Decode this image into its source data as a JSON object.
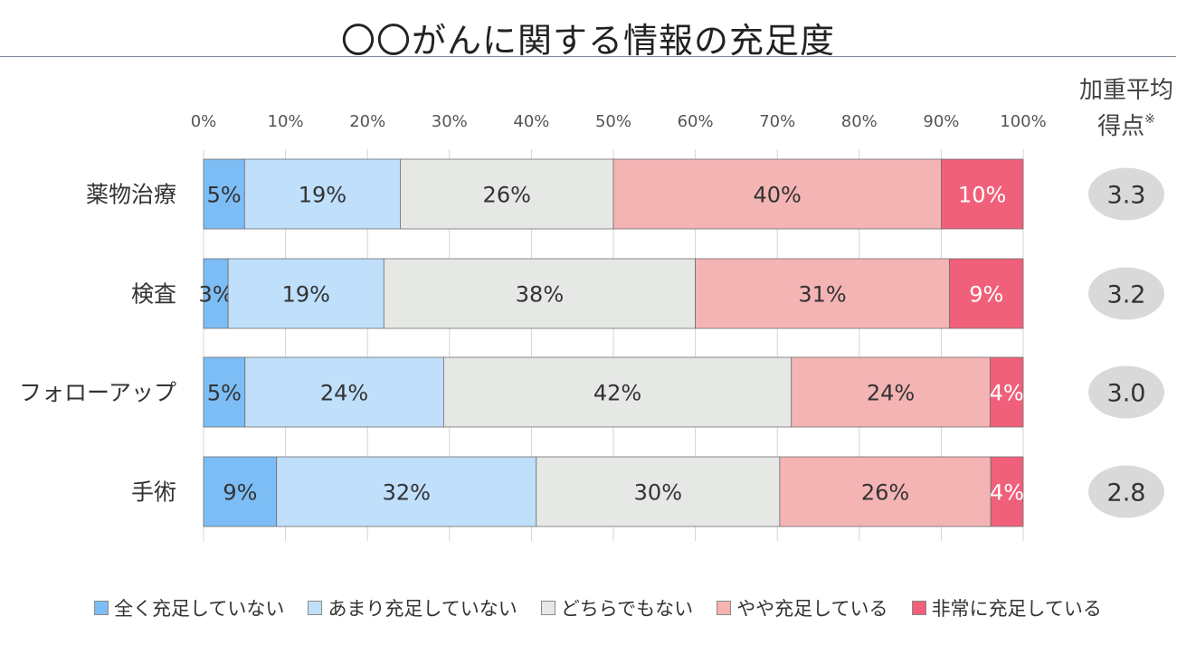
{
  "title": "〇〇がんに関する情報の充足度",
  "side_header": {
    "line1": "加重平均",
    "line2": "得点",
    "note_mark": "※"
  },
  "chart_data": {
    "type": "bar",
    "orientation": "horizontal",
    "stacked": true,
    "percent_stacked": true,
    "title": "〇〇がんに関する情報の充足度",
    "categories": [
      "薬物治療",
      "検査",
      "フォローアップ",
      "手術"
    ],
    "x_ticks": [
      "0%",
      "10%",
      "20%",
      "30%",
      "40%",
      "50%",
      "60%",
      "70%",
      "80%",
      "90%",
      "100%"
    ],
    "xlim": [
      0,
      100
    ],
    "grid": true,
    "legend_position": "bottom",
    "series": [
      {
        "name": "全く充足していない",
        "color": "#7dbdf5",
        "values": [
          5,
          3,
          5,
          9
        ],
        "labels": [
          "5%",
          "3%",
          "5%",
          "9%"
        ]
      },
      {
        "name": "あまり充足していない",
        "color": "#bfdffb",
        "values": [
          19,
          19,
          24,
          32
        ],
        "labels": [
          "19%",
          "19%",
          "24%",
          "32%"
        ]
      },
      {
        "name": "どちらでもない",
        "color": "#e6e8e6",
        "values": [
          26,
          38,
          42,
          30
        ],
        "labels": [
          "26%",
          "38%",
          "42%",
          "30%"
        ]
      },
      {
        "name": "やや充足している",
        "color": "#f4b4b4",
        "values": [
          40,
          31,
          24,
          26
        ],
        "labels": [
          "40%",
          "31%",
          "24%",
          "26%"
        ]
      },
      {
        "name": "非常に充足している",
        "color": "#f0607a",
        "values": [
          10,
          9,
          4,
          4
        ],
        "labels": [
          "10%",
          "9%",
          "4%",
          "4%"
        ]
      }
    ],
    "weighted_average": [
      "3.3",
      "3.2",
      "3.0",
      "2.8"
    ]
  }
}
